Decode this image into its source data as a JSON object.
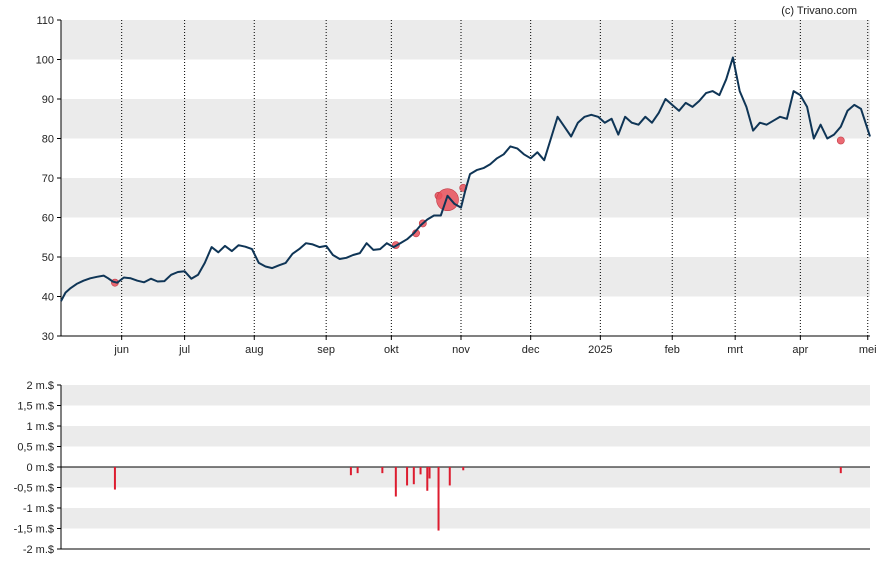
{
  "credit": "(c) Trivano.com",
  "colors": {
    "price_line": "#0f3556",
    "band": "#ebebeb",
    "bubble": "#e8505b",
    "bar": "#dd1c2f",
    "axis": "#000000",
    "vgrid": "#000000"
  },
  "chart_data": [
    {
      "type": "line",
      "title": "",
      "xlabel": "",
      "ylabel": "",
      "ylim": [
        30,
        110
      ],
      "y_ticks": [
        "30",
        "40",
        "50",
        "60",
        "70",
        "80",
        "90",
        "100",
        "110"
      ],
      "y_tick_values": [
        30,
        40,
        50,
        60,
        70,
        80,
        90,
        100,
        110
      ],
      "x_range": [
        "2024-05-07",
        "2025-05-02"
      ],
      "x_ticks": [
        {
          "date": "2024-06-03",
          "label": "jun"
        },
        {
          "date": "2024-07-01",
          "label": "jul"
        },
        {
          "date": "2024-08-01",
          "label": "aug"
        },
        {
          "date": "2024-09-02",
          "label": "sep"
        },
        {
          "date": "2024-10-01",
          "label": "okt"
        },
        {
          "date": "2024-11-01",
          "label": "nov"
        },
        {
          "date": "2024-12-02",
          "label": "dec"
        },
        {
          "date": "2025-01-02",
          "label": "2025"
        },
        {
          "date": "2025-02-03",
          "label": "feb"
        },
        {
          "date": "2025-03-03",
          "label": "mrt"
        },
        {
          "date": "2025-04-01",
          "label": "apr"
        },
        {
          "date": "2025-05-01",
          "label": "mei"
        }
      ],
      "grid": "alternating horizontal bands, dotted vertical lines",
      "series": [
        {
          "points": [
            [
              "2024-05-07",
              38.8
            ],
            [
              "2024-05-09",
              41.0
            ],
            [
              "2024-05-11",
              42.0
            ],
            [
              "2024-05-14",
              43.2
            ],
            [
              "2024-05-17",
              44.0
            ],
            [
              "2024-05-20",
              44.6
            ],
            [
              "2024-05-23",
              45.0
            ],
            [
              "2024-05-26",
              45.3
            ],
            [
              "2024-05-28",
              44.6
            ],
            [
              "2024-05-30",
              43.8
            ],
            [
              "2024-06-01",
              43.5
            ],
            [
              "2024-06-04",
              44.8
            ],
            [
              "2024-06-07",
              44.6
            ],
            [
              "2024-06-10",
              44.0
            ],
            [
              "2024-06-13",
              43.6
            ],
            [
              "2024-06-16",
              44.5
            ],
            [
              "2024-06-19",
              43.8
            ],
            [
              "2024-06-22",
              43.9
            ],
            [
              "2024-06-25",
              45.5
            ],
            [
              "2024-06-28",
              46.2
            ],
            [
              "2024-07-01",
              46.4
            ],
            [
              "2024-07-04",
              44.5
            ],
            [
              "2024-07-07",
              45.5
            ],
            [
              "2024-07-10",
              48.5
            ],
            [
              "2024-07-13",
              52.5
            ],
            [
              "2024-07-16",
              51.2
            ],
            [
              "2024-07-19",
              52.8
            ],
            [
              "2024-07-22",
              51.5
            ],
            [
              "2024-07-25",
              53.0
            ],
            [
              "2024-07-28",
              52.6
            ],
            [
              "2024-07-31",
              52.0
            ],
            [
              "2024-08-03",
              48.5
            ],
            [
              "2024-08-06",
              47.6
            ],
            [
              "2024-08-09",
              47.2
            ],
            [
              "2024-08-12",
              47.9
            ],
            [
              "2024-08-15",
              48.5
            ],
            [
              "2024-08-18",
              50.8
            ],
            [
              "2024-08-21",
              52.0
            ],
            [
              "2024-08-24",
              53.5
            ],
            [
              "2024-08-27",
              53.2
            ],
            [
              "2024-08-30",
              52.5
            ],
            [
              "2024-09-02",
              52.8
            ],
            [
              "2024-09-05",
              50.5
            ],
            [
              "2024-09-08",
              49.5
            ],
            [
              "2024-09-11",
              49.8
            ],
            [
              "2024-09-14",
              50.5
            ],
            [
              "2024-09-17",
              51.0
            ],
            [
              "2024-09-20",
              53.5
            ],
            [
              "2024-09-23",
              51.8
            ],
            [
              "2024-09-26",
              52.0
            ],
            [
              "2024-09-29",
              53.5
            ],
            [
              "2024-10-02",
              52.5
            ],
            [
              "2024-10-05",
              53.5
            ],
            [
              "2024-10-08",
              54.5
            ],
            [
              "2024-10-11",
              56.0
            ],
            [
              "2024-10-14",
              58.0
            ],
            [
              "2024-10-17",
              59.5
            ],
            [
              "2024-10-20",
              60.5
            ],
            [
              "2024-10-23",
              60.5
            ],
            [
              "2024-10-26",
              65.5
            ],
            [
              "2024-10-29",
              63.5
            ],
            [
              "2024-11-01",
              62.5
            ],
            [
              "2024-11-03",
              67.0
            ],
            [
              "2024-11-05",
              71.0
            ],
            [
              "2024-11-08",
              72.0
            ],
            [
              "2024-11-11",
              72.5
            ],
            [
              "2024-11-14",
              73.5
            ],
            [
              "2024-11-17",
              75.0
            ],
            [
              "2024-11-20",
              76.0
            ],
            [
              "2024-11-23",
              78.0
            ],
            [
              "2024-11-26",
              77.5
            ],
            [
              "2024-11-29",
              76.0
            ],
            [
              "2024-12-02",
              75.0
            ],
            [
              "2024-12-05",
              76.5
            ],
            [
              "2024-12-08",
              74.5
            ],
            [
              "2024-12-11",
              80.0
            ],
            [
              "2024-12-14",
              85.5
            ],
            [
              "2024-12-17",
              83.0
            ],
            [
              "2024-12-20",
              80.5
            ],
            [
              "2024-12-23",
              84.0
            ],
            [
              "2024-12-26",
              85.5
            ],
            [
              "2024-12-29",
              86.0
            ],
            [
              "2025-01-01",
              85.5
            ],
            [
              "2025-01-04",
              84.0
            ],
            [
              "2025-01-07",
              85.0
            ],
            [
              "2025-01-10",
              81.0
            ],
            [
              "2025-01-13",
              85.5
            ],
            [
              "2025-01-16",
              84.0
            ],
            [
              "2025-01-19",
              83.5
            ],
            [
              "2025-01-22",
              85.5
            ],
            [
              "2025-01-25",
              84.0
            ],
            [
              "2025-01-28",
              86.5
            ],
            [
              "2025-01-31",
              90.0
            ],
            [
              "2025-02-03",
              88.5
            ],
            [
              "2025-02-06",
              87.0
            ],
            [
              "2025-02-09",
              89.0
            ],
            [
              "2025-02-12",
              88.0
            ],
            [
              "2025-02-15",
              89.5
            ],
            [
              "2025-02-18",
              91.5
            ],
            [
              "2025-02-21",
              92.0
            ],
            [
              "2025-02-24",
              91.0
            ],
            [
              "2025-02-27",
              95.0
            ],
            [
              "2025-03-02",
              100.5
            ],
            [
              "2025-03-05",
              92.0
            ],
            [
              "2025-03-08",
              88.0
            ],
            [
              "2025-03-11",
              82.0
            ],
            [
              "2025-03-14",
              84.0
            ],
            [
              "2025-03-17",
              83.5
            ],
            [
              "2025-03-20",
              84.5
            ],
            [
              "2025-03-23",
              85.5
            ],
            [
              "2025-03-26",
              85.0
            ],
            [
              "2025-03-29",
              92.0
            ],
            [
              "2025-04-01",
              91.0
            ],
            [
              "2025-04-04",
              88.0
            ],
            [
              "2025-04-07",
              80.0
            ],
            [
              "2025-04-10",
              83.5
            ],
            [
              "2025-04-13",
              80.0
            ],
            [
              "2025-04-16",
              81.0
            ],
            [
              "2025-04-19",
              83.0
            ],
            [
              "2025-04-22",
              87.0
            ],
            [
              "2025-04-25",
              88.5
            ],
            [
              "2025-04-28",
              87.5
            ],
            [
              "2025-05-02",
              80.5
            ]
          ]
        }
      ],
      "markers": [
        {
          "date": "2024-05-31",
          "value": 43.5,
          "size": "small"
        },
        {
          "date": "2024-10-03",
          "value": 53.0,
          "size": "small"
        },
        {
          "date": "2024-10-12",
          "value": 56.0,
          "size": "small"
        },
        {
          "date": "2024-10-15",
          "value": 58.5,
          "size": "small"
        },
        {
          "date": "2024-10-22",
          "value": 65.5,
          "size": "small"
        },
        {
          "date": "2024-10-26",
          "value": 64.5,
          "size": "large"
        },
        {
          "date": "2024-11-02",
          "value": 67.5,
          "size": "small"
        },
        {
          "date": "2025-04-19",
          "value": 79.5,
          "size": "small"
        }
      ]
    },
    {
      "type": "bar",
      "title": "",
      "xlabel": "",
      "ylabel": "",
      "ylim": [
        -2,
        2
      ],
      "y_ticks": [
        "2 m.$",
        "1,5 m.$",
        "1 m.$",
        "0,5 m.$",
        "0 m.$",
        "-0,5 m.$",
        "-1 m.$",
        "-1,5 m.$",
        "-2 m.$"
      ],
      "y_tick_values": [
        2,
        1.5,
        1,
        0.5,
        0,
        -0.5,
        -1,
        -1.5,
        -2
      ],
      "x_range": [
        "2024-05-07",
        "2025-05-02"
      ],
      "values": [
        [
          "2024-05-31",
          -0.55
        ],
        [
          "2024-09-13",
          -0.2
        ],
        [
          "2024-09-16",
          -0.15
        ],
        [
          "2024-09-27",
          -0.15
        ],
        [
          "2024-10-03",
          -0.72
        ],
        [
          "2024-10-08",
          -0.45
        ],
        [
          "2024-10-11",
          -0.42
        ],
        [
          "2024-10-14",
          -0.18
        ],
        [
          "2024-10-17",
          -0.58
        ],
        [
          "2024-10-18",
          -0.28
        ],
        [
          "2024-10-22",
          -1.55
        ],
        [
          "2024-10-27",
          -0.45
        ],
        [
          "2024-11-02",
          -0.08
        ],
        [
          "2025-04-19",
          -0.15
        ]
      ]
    }
  ]
}
